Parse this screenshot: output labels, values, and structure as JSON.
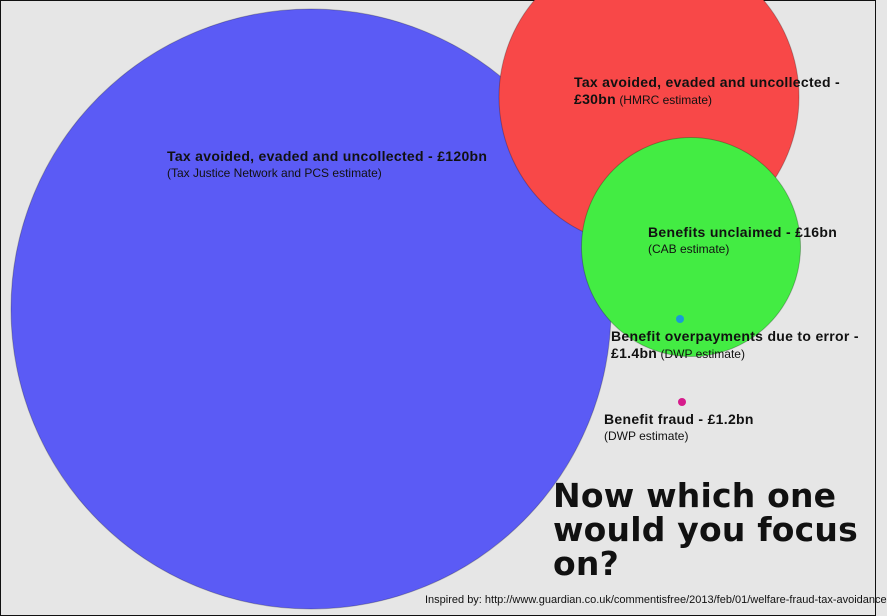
{
  "chart_data": {
    "type": "bubble",
    "unit": "£bn",
    "items": [
      {
        "title": "Tax avoided, evaded and uncollected - £120bn",
        "value": 120,
        "source": "(Tax Justice Network and PCS estimate)",
        "color": "#5b5bf5"
      },
      {
        "title_line1": "Tax avoided, evaded and uncollected -",
        "title_line2": "£30bn",
        "value": 30,
        "source": "(HMRC estimate)",
        "color": "#f84848"
      },
      {
        "title": "Benefits unclaimed - £16bn",
        "value": 16,
        "source": "(CAB estimate)",
        "color": "#43ec43"
      },
      {
        "title_line1": "Benefit overpayments due to error -",
        "title_line2": "£1.4bn",
        "value": 1.4,
        "source": "(DWP estimate)",
        "color": "#1a9ad6"
      },
      {
        "title": "Benefit fraud - £1.2bn",
        "value": 1.2,
        "source": "(DWP estimate)",
        "color": "#d61c8c"
      }
    ]
  },
  "headline": "Now which one would you focus on?",
  "credit": "Inspired by: http://www.guardian.co.uk/commentisfree/2013/feb/01/welfare-fraud-tax-avoidance"
}
